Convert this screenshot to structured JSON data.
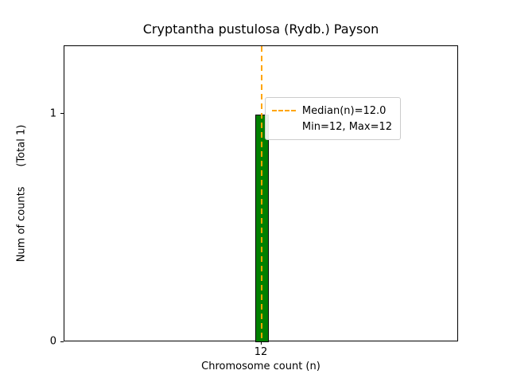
{
  "chart_data": {
    "type": "bar",
    "title": "Cryptantha pustulosa (Rydb.) Payson",
    "xlabel": "Chromosome count (n)",
    "ylabel": "Num of counts      (Total 1)",
    "categories": [
      12
    ],
    "values": [
      1
    ],
    "total_counts": 1,
    "bar_color": "#008000",
    "bar_edge_color": "#000000",
    "ylim": [
      0,
      1.3
    ],
    "yticks": [
      0,
      1
    ],
    "xticks": [
      12
    ],
    "grid": false,
    "median_line": {
      "x": 12,
      "value_label": "12.0",
      "color": "#FFA500",
      "style": "dashed"
    },
    "legend": {
      "position": "upper right",
      "entries": [
        {
          "label": "Median(n)=12.0",
          "marker": "dashed-line",
          "color": "#FFA500"
        },
        {
          "label": "Min=12, Max=12",
          "marker": "none",
          "color": null
        }
      ]
    }
  }
}
